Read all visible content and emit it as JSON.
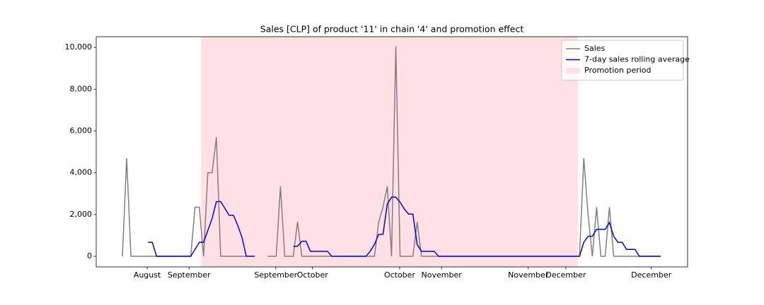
{
  "chart_data": {
    "type": "line",
    "title": "Sales [CLP] of product '11' in chain '4' and promotion effect",
    "x": [
      0,
      1,
      2,
      3,
      4,
      5,
      6,
      7,
      8,
      9,
      10,
      11,
      12,
      13,
      14,
      15,
      16,
      17,
      18,
      19,
      20,
      21,
      22,
      23,
      24,
      25,
      26,
      27,
      28,
      29,
      30,
      31,
      32,
      33,
      34,
      35,
      36,
      37,
      38,
      39,
      40,
      41,
      42,
      43,
      44,
      45,
      46,
      47,
      48,
      49,
      50,
      51,
      52,
      53,
      54,
      55,
      56,
      57,
      58,
      59,
      60,
      61,
      62,
      63,
      64,
      65,
      66,
      67,
      68,
      69,
      70,
      71,
      72,
      73,
      74,
      75,
      76,
      77,
      78,
      79,
      80,
      81,
      82,
      83,
      84,
      85,
      86,
      87,
      88,
      89,
      90,
      91,
      92,
      93,
      94,
      95,
      96,
      97,
      98,
      99,
      100,
      101,
      102,
      103,
      104,
      105,
      106,
      107,
      108,
      109,
      110,
      111,
      112,
      113,
      114,
      115,
      116,
      117,
      118,
      119,
      120,
      121,
      122,
      123,
      124,
      125,
      126
    ],
    "series": [
      {
        "name": "Sales",
        "color": "#808080",
        "values": [
          0,
          4700,
          0,
          0,
          0,
          0,
          0,
          0,
          0,
          0,
          0,
          0,
          0,
          0,
          0,
          0,
          0,
          2350,
          2350,
          0,
          4000,
          4000,
          5700,
          0,
          0,
          0,
          0,
          0,
          0,
          0,
          null,
          null,
          null,
          null,
          0,
          0,
          0,
          3350,
          0,
          0,
          0,
          1650,
          0,
          0,
          0,
          0,
          0,
          0,
          0,
          0,
          0,
          0,
          0,
          0,
          0,
          0,
          0,
          0,
          0,
          0,
          1650,
          2350,
          3350,
          0,
          10050,
          0,
          0,
          0,
          0,
          1650,
          0,
          0,
          0,
          0,
          0,
          0,
          0,
          0,
          0,
          0,
          0,
          0,
          0,
          0,
          0,
          0,
          0,
          0,
          0,
          0,
          0,
          0,
          0,
          0,
          0,
          0,
          0,
          0,
          0,
          0,
          0,
          0,
          0,
          0,
          0,
          0,
          0,
          0,
          4700,
          2000,
          0,
          2350,
          0,
          0,
          2350,
          0,
          0,
          0,
          0,
          0,
          0,
          0,
          0,
          0,
          0,
          0,
          0
        ]
      },
      {
        "name": "7-day sales rolling average",
        "color": "#0000ff",
        "values": [
          null,
          null,
          null,
          null,
          null,
          null,
          670,
          670,
          0,
          0,
          0,
          0,
          0,
          0,
          0,
          0,
          0,
          330,
          670,
          670,
          1240,
          1810,
          2620,
          2620,
          2290,
          1960,
          1960,
          1480,
          900,
          0,
          0,
          0,
          null,
          null,
          null,
          null,
          null,
          null,
          null,
          null,
          480,
          480,
          720,
          720,
          240,
          240,
          240,
          240,
          240,
          0,
          0,
          0,
          0,
          0,
          0,
          0,
          0,
          0,
          240,
          570,
          1050,
          1050,
          2500,
          2830,
          2830,
          2590,
          2260,
          2020,
          2020,
          570,
          240,
          240,
          240,
          240,
          0,
          0,
          0,
          0,
          0,
          0,
          0,
          0,
          0,
          0,
          0,
          0,
          0,
          0,
          0,
          0,
          0,
          0,
          0,
          0,
          0,
          0,
          0,
          0,
          0,
          0,
          0,
          0,
          0,
          0,
          0,
          0,
          0,
          0,
          670,
          960,
          960,
          1290,
          1290,
          1290,
          1620,
          960,
          670,
          670,
          330,
          330,
          330,
          0,
          0,
          0,
          0,
          0,
          0
        ]
      }
    ],
    "promotion": {
      "name": "Promotion period",
      "color": "#ffe0e4",
      "start": 18.4,
      "end": 106.6
    },
    "xlim": [
      -6.13,
      132.3
    ],
    "xticks": [
      {
        "value": 5.8,
        "label": "August"
      },
      {
        "value": 15.6,
        "label": "September"
      },
      {
        "value": 35.9,
        "label": "September"
      },
      {
        "value": 44.5,
        "label": "October"
      },
      {
        "value": 64.9,
        "label": "October"
      },
      {
        "value": 74.7,
        "label": "November"
      },
      {
        "value": 95.0,
        "label": "November"
      },
      {
        "value": 103.8,
        "label": "December"
      },
      {
        "value": 123.8,
        "label": "December"
      }
    ],
    "ylim": [
      -505,
      10510
    ],
    "yticks": [
      0,
      {
        "value": 2000,
        "label": "2,000"
      },
      {
        "value": 4000,
        "label": "4,000"
      },
      {
        "value": 6000,
        "label": "6,000"
      },
      {
        "value": 8000,
        "label": "8,000"
      },
      {
        "value": 10000,
        "label": "10,000"
      }
    ],
    "legend": "upper right",
    "grid": false
  }
}
